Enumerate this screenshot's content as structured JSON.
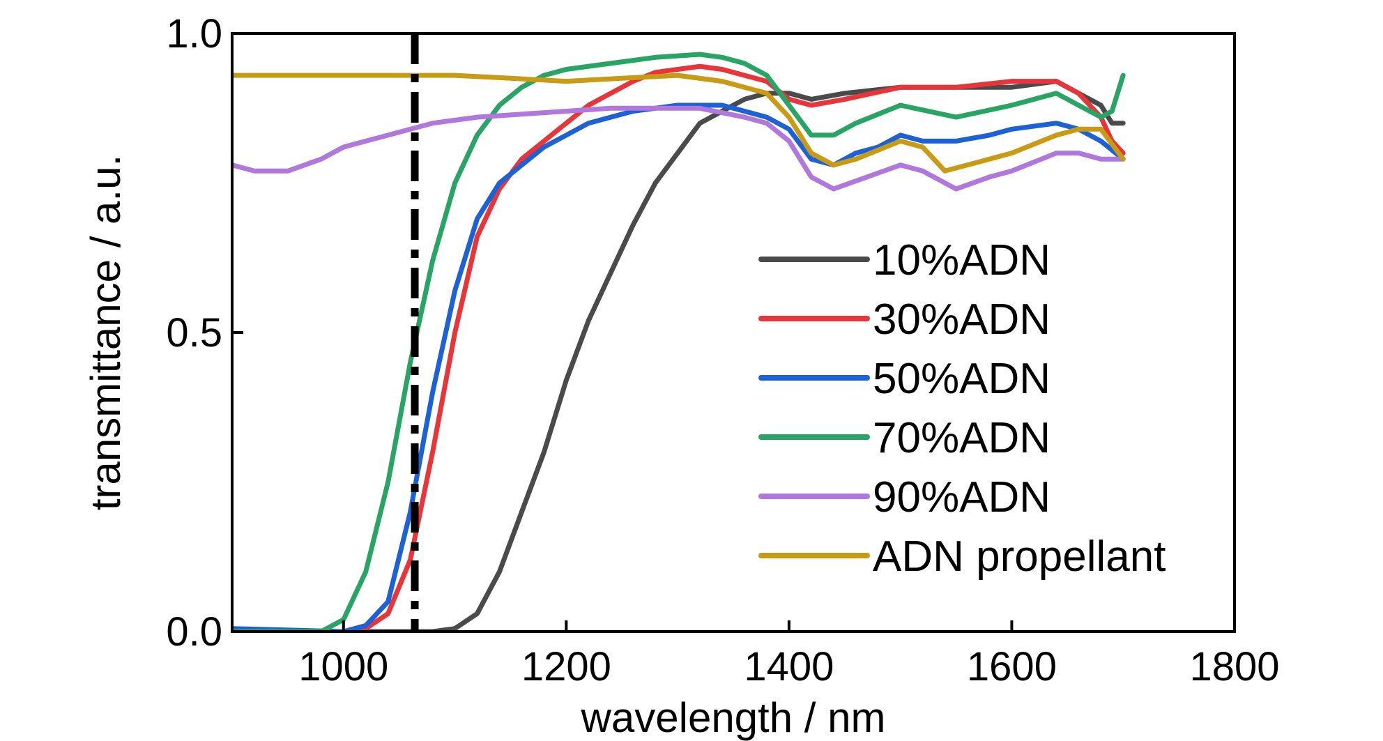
{
  "chart_data": {
    "type": "line",
    "xlabel": "wavelength / nm",
    "ylabel": "transmittance / a.u.",
    "xlim": [
      900,
      1800
    ],
    "ylim": [
      0.0,
      1.0
    ],
    "x_ticks": [
      "1000",
      "1200",
      "1400",
      "1600",
      "1800"
    ],
    "y_ticks": [
      "0.0",
      "0.5",
      "1.0"
    ],
    "grid": false,
    "legend_position": "right, below middle",
    "vertical_marker": {
      "x": 1064,
      "style": "dash-dot",
      "color": "#000000"
    },
    "series": [
      {
        "name": "10%ADN",
        "color": "#4a4a4a",
        "points": [
          [
            900,
            0.0
          ],
          [
            1000,
            0.0
          ],
          [
            1080,
            0.0
          ],
          [
            1100,
            0.005
          ],
          [
            1120,
            0.03
          ],
          [
            1140,
            0.1
          ],
          [
            1160,
            0.2
          ],
          [
            1180,
            0.3
          ],
          [
            1200,
            0.42
          ],
          [
            1220,
            0.52
          ],
          [
            1240,
            0.6
          ],
          [
            1260,
            0.68
          ],
          [
            1280,
            0.75
          ],
          [
            1300,
            0.8
          ],
          [
            1320,
            0.85
          ],
          [
            1340,
            0.87
          ],
          [
            1360,
            0.89
          ],
          [
            1380,
            0.9
          ],
          [
            1400,
            0.9
          ],
          [
            1420,
            0.89
          ],
          [
            1450,
            0.9
          ],
          [
            1500,
            0.91
          ],
          [
            1550,
            0.91
          ],
          [
            1600,
            0.91
          ],
          [
            1640,
            0.92
          ],
          [
            1660,
            0.9
          ],
          [
            1680,
            0.88
          ],
          [
            1690,
            0.85
          ],
          [
            1700,
            0.85
          ]
        ]
      },
      {
        "name": "30%ADN",
        "color": "#e8353a",
        "points": [
          [
            900,
            0.0
          ],
          [
            1000,
            0.0
          ],
          [
            1020,
            0.005
          ],
          [
            1040,
            0.03
          ],
          [
            1060,
            0.12
          ],
          [
            1080,
            0.3
          ],
          [
            1100,
            0.5
          ],
          [
            1120,
            0.66
          ],
          [
            1140,
            0.74
          ],
          [
            1160,
            0.79
          ],
          [
            1180,
            0.82
          ],
          [
            1200,
            0.85
          ],
          [
            1220,
            0.88
          ],
          [
            1240,
            0.9
          ],
          [
            1260,
            0.92
          ],
          [
            1280,
            0.935
          ],
          [
            1300,
            0.94
          ],
          [
            1320,
            0.945
          ],
          [
            1340,
            0.94
          ],
          [
            1360,
            0.93
          ],
          [
            1380,
            0.92
          ],
          [
            1400,
            0.89
          ],
          [
            1420,
            0.88
          ],
          [
            1450,
            0.89
          ],
          [
            1500,
            0.91
          ],
          [
            1550,
            0.91
          ],
          [
            1600,
            0.92
          ],
          [
            1640,
            0.92
          ],
          [
            1660,
            0.9
          ],
          [
            1680,
            0.86
          ],
          [
            1690,
            0.82
          ],
          [
            1700,
            0.8
          ]
        ]
      },
      {
        "name": "50%ADN",
        "color": "#1c62d6",
        "points": [
          [
            900,
            0.005
          ],
          [
            1000,
            0.0
          ],
          [
            1020,
            0.01
          ],
          [
            1040,
            0.05
          ],
          [
            1060,
            0.2
          ],
          [
            1080,
            0.4
          ],
          [
            1100,
            0.57
          ],
          [
            1120,
            0.69
          ],
          [
            1140,
            0.75
          ],
          [
            1160,
            0.78
          ],
          [
            1180,
            0.81
          ],
          [
            1200,
            0.83
          ],
          [
            1220,
            0.85
          ],
          [
            1240,
            0.86
          ],
          [
            1260,
            0.87
          ],
          [
            1300,
            0.88
          ],
          [
            1340,
            0.88
          ],
          [
            1360,
            0.87
          ],
          [
            1380,
            0.86
          ],
          [
            1400,
            0.84
          ],
          [
            1420,
            0.79
          ],
          [
            1440,
            0.78
          ],
          [
            1460,
            0.8
          ],
          [
            1480,
            0.81
          ],
          [
            1500,
            0.83
          ],
          [
            1520,
            0.82
          ],
          [
            1550,
            0.82
          ],
          [
            1580,
            0.83
          ],
          [
            1600,
            0.84
          ],
          [
            1640,
            0.85
          ],
          [
            1660,
            0.84
          ],
          [
            1680,
            0.82
          ],
          [
            1700,
            0.79
          ]
        ]
      },
      {
        "name": "70%ADN",
        "color": "#28a464",
        "points": [
          [
            900,
            0.0
          ],
          [
            980,
            0.0
          ],
          [
            1000,
            0.02
          ],
          [
            1020,
            0.1
          ],
          [
            1040,
            0.25
          ],
          [
            1060,
            0.45
          ],
          [
            1080,
            0.62
          ],
          [
            1100,
            0.75
          ],
          [
            1120,
            0.83
          ],
          [
            1140,
            0.88
          ],
          [
            1160,
            0.91
          ],
          [
            1180,
            0.93
          ],
          [
            1200,
            0.94
          ],
          [
            1240,
            0.95
          ],
          [
            1280,
            0.96
          ],
          [
            1320,
            0.965
          ],
          [
            1340,
            0.96
          ],
          [
            1360,
            0.95
          ],
          [
            1380,
            0.93
          ],
          [
            1400,
            0.88
          ],
          [
            1420,
            0.83
          ],
          [
            1440,
            0.83
          ],
          [
            1460,
            0.85
          ],
          [
            1500,
            0.88
          ],
          [
            1550,
            0.86
          ],
          [
            1600,
            0.88
          ],
          [
            1640,
            0.9
          ],
          [
            1660,
            0.88
          ],
          [
            1680,
            0.86
          ],
          [
            1690,
            0.87
          ],
          [
            1700,
            0.93
          ]
        ]
      },
      {
        "name": "90%ADN",
        "color": "#b077dc",
        "points": [
          [
            900,
            0.78
          ],
          [
            920,
            0.77
          ],
          [
            950,
            0.77
          ],
          [
            980,
            0.79
          ],
          [
            1000,
            0.81
          ],
          [
            1040,
            0.83
          ],
          [
            1080,
            0.85
          ],
          [
            1120,
            0.86
          ],
          [
            1160,
            0.865
          ],
          [
            1200,
            0.87
          ],
          [
            1240,
            0.875
          ],
          [
            1280,
            0.875
          ],
          [
            1320,
            0.875
          ],
          [
            1360,
            0.86
          ],
          [
            1380,
            0.85
          ],
          [
            1400,
            0.82
          ],
          [
            1420,
            0.76
          ],
          [
            1440,
            0.74
          ],
          [
            1470,
            0.76
          ],
          [
            1500,
            0.78
          ],
          [
            1520,
            0.77
          ],
          [
            1550,
            0.74
          ],
          [
            1580,
            0.76
          ],
          [
            1600,
            0.77
          ],
          [
            1640,
            0.8
          ],
          [
            1660,
            0.8
          ],
          [
            1680,
            0.79
          ],
          [
            1700,
            0.79
          ]
        ]
      },
      {
        "name": "ADN propellant",
        "color": "#c99a14",
        "points": [
          [
            900,
            0.93
          ],
          [
            950,
            0.93
          ],
          [
            1000,
            0.93
          ],
          [
            1050,
            0.93
          ],
          [
            1100,
            0.93
          ],
          [
            1150,
            0.925
          ],
          [
            1200,
            0.92
          ],
          [
            1250,
            0.925
          ],
          [
            1300,
            0.93
          ],
          [
            1340,
            0.92
          ],
          [
            1360,
            0.91
          ],
          [
            1380,
            0.9
          ],
          [
            1400,
            0.86
          ],
          [
            1420,
            0.8
          ],
          [
            1440,
            0.78
          ],
          [
            1460,
            0.79
          ],
          [
            1500,
            0.82
          ],
          [
            1520,
            0.81
          ],
          [
            1540,
            0.77
          ],
          [
            1560,
            0.78
          ],
          [
            1600,
            0.8
          ],
          [
            1640,
            0.83
          ],
          [
            1660,
            0.84
          ],
          [
            1680,
            0.84
          ],
          [
            1700,
            0.79
          ]
        ]
      }
    ]
  }
}
